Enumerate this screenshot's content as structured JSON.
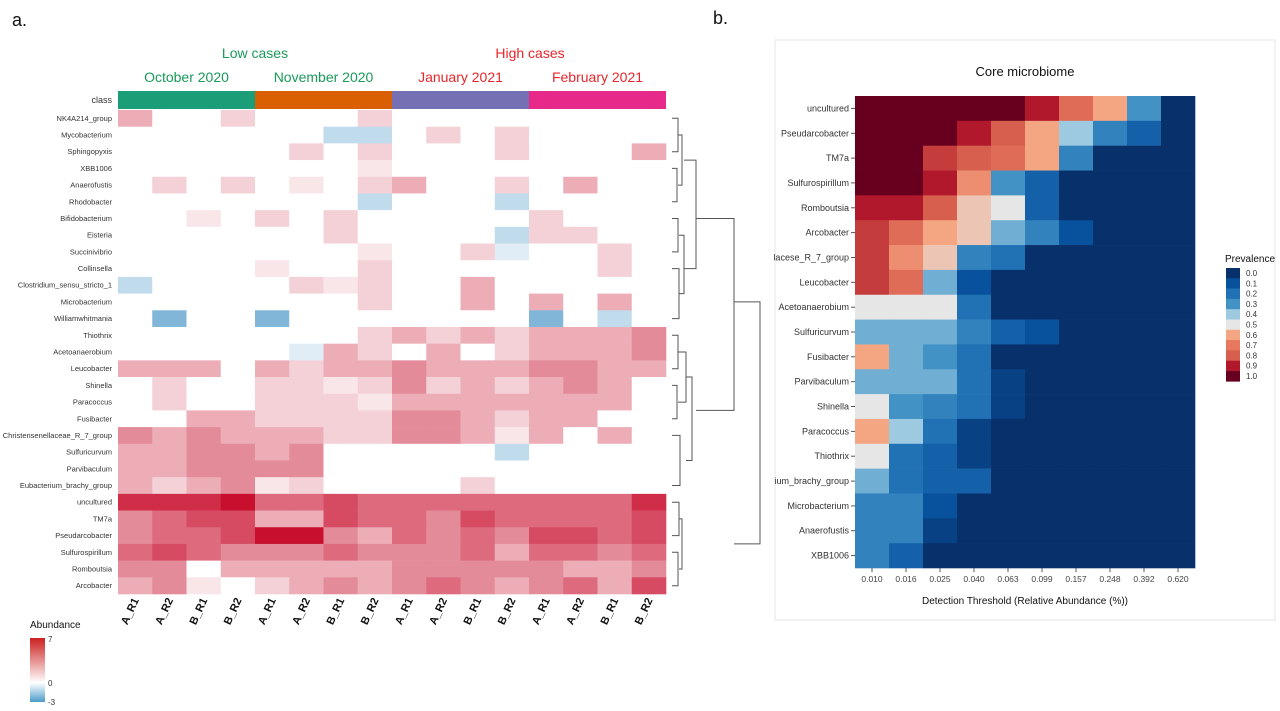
{
  "chart_data": [
    {
      "type": "heatmap",
      "panel": "a.",
      "group_headers": [
        {
          "label": "Low cases",
          "color": "#1a9a5a"
        },
        {
          "label": "High cases",
          "color": "#e8262a"
        }
      ],
      "months": [
        {
          "label": "October 2020",
          "color": "#1a9a5a",
          "bar": "#1b9e77"
        },
        {
          "label": "November 2020",
          "color": "#1a9a5a",
          "bar": "#d95f02"
        },
        {
          "label": "January 2021",
          "color": "#e8262a",
          "bar": "#7570b3"
        },
        {
          "label": "February 2021",
          "color": "#e8262a",
          "bar": "#e7298a"
        }
      ],
      "class_label": "class",
      "columns": [
        "A_R1",
        "A_R2",
        "B_R1",
        "B_R2",
        "A_R1",
        "A_R2",
        "B_R1",
        "B_R2",
        "A_R1",
        "A_R2",
        "B_R1",
        "B_R2",
        "A_R1",
        "A_R2",
        "B_R1",
        "B_R2"
      ],
      "rows": [
        "NK4A214_group",
        "Mycobacterium",
        "Sphingopyxis",
        "XBB1006",
        "Anaerofustis",
        "Rhodobacter",
        "Bifidobacterium",
        "Eisteria",
        "Succinivibrio",
        "Collinsella",
        "Clostridium_sensu_stricto_1",
        "Microbacterium",
        "Williamwhitmania",
        "Thiothrix",
        "Acetoanaerobium",
        "Leucobacter",
        "Shinella",
        "Paracoccus",
        "Fusibacter",
        "Christensenellaceae_R_7_group",
        "Sulfuricurvum",
        "Parvibaculum",
        "Eubacterium_brachy_group",
        "uncultured",
        "TM7a",
        "Pseudarcobacter",
        "Sulfurospirillum",
        "Romboutsia",
        "Arcobacter"
      ],
      "values": [
        [
          2,
          0,
          0,
          1,
          0,
          0,
          0,
          1,
          0,
          0,
          0,
          0,
          0,
          0,
          0,
          0
        ],
        [
          0,
          0,
          0,
          0,
          0,
          0,
          -1,
          -1,
          0,
          1,
          0,
          1,
          0,
          0,
          0,
          0
        ],
        [
          0,
          0,
          0,
          0,
          0,
          1,
          0,
          1,
          0,
          0,
          0,
          1,
          0,
          0,
          0,
          2
        ],
        [
          0,
          0,
          0,
          0,
          0,
          0,
          0,
          0.5,
          0,
          0,
          0,
          0,
          0,
          0,
          0,
          0
        ],
        [
          0,
          1,
          0,
          1,
          0,
          0.5,
          0,
          1,
          2,
          0,
          0,
          1,
          0,
          2,
          0,
          0
        ],
        [
          0,
          0,
          0,
          0,
          0,
          0,
          0,
          -1,
          0,
          0,
          0,
          -1,
          0,
          0,
          0,
          0
        ],
        [
          0,
          0,
          0.5,
          0,
          1,
          0,
          1,
          0,
          0,
          0,
          0,
          0,
          1,
          0,
          0,
          0
        ],
        [
          0,
          0,
          0,
          0,
          0,
          0,
          1,
          0,
          0,
          0,
          0,
          -1,
          1,
          1,
          0,
          0
        ],
        [
          0,
          0,
          0,
          0,
          0,
          0,
          0,
          0.5,
          0,
          0,
          1,
          -0.5,
          0,
          0,
          1,
          0
        ],
        [
          0,
          0,
          0,
          0,
          0.5,
          0,
          0,
          1,
          0,
          0,
          0,
          0,
          0,
          0,
          1,
          0
        ],
        [
          -1,
          0,
          0,
          0,
          0,
          1,
          0.5,
          1,
          0,
          0,
          2,
          0,
          0,
          0,
          0,
          0
        ],
        [
          0,
          0,
          0,
          0,
          0,
          0,
          0,
          1,
          0,
          0,
          2,
          0,
          2,
          0,
          2,
          0
        ],
        [
          0,
          -2,
          0,
          0,
          -2,
          0,
          0,
          0,
          0,
          0,
          0,
          0,
          -2,
          0,
          -1,
          0
        ],
        [
          0,
          0,
          0,
          0,
          0,
          0,
          0,
          1,
          2,
          1,
          2,
          1,
          2,
          2,
          2,
          3
        ],
        [
          0,
          0,
          0,
          0,
          0,
          -0.5,
          2,
          1,
          0,
          2,
          0,
          1,
          2,
          2,
          2,
          3
        ],
        [
          2,
          2,
          2,
          0,
          2,
          1,
          2,
          2,
          3,
          2,
          2,
          2,
          3,
          3,
          2,
          2
        ],
        [
          0,
          1,
          0,
          0,
          1,
          1,
          0.5,
          1,
          3,
          1,
          2,
          1,
          2,
          3,
          2,
          0
        ],
        [
          0,
          1,
          0,
          0,
          1,
          1,
          1,
          0.5,
          2,
          2,
          2,
          2,
          2,
          2,
          2,
          0
        ],
        [
          0,
          0,
          2,
          2,
          1,
          1,
          1,
          1,
          3,
          3,
          2,
          1,
          2,
          2,
          0,
          0
        ],
        [
          3,
          2,
          3,
          2,
          2,
          2,
          1,
          1,
          3,
          3,
          2,
          0.5,
          2,
          0,
          2,
          0
        ],
        [
          2,
          2,
          3,
          3,
          2,
          3,
          0,
          0,
          0,
          0,
          0,
          -1,
          0,
          0,
          0,
          0
        ],
        [
          2,
          2,
          3,
          3,
          3,
          3,
          0,
          0,
          0,
          0,
          0,
          0,
          0,
          0,
          0,
          0
        ],
        [
          2,
          1,
          2,
          3,
          0.5,
          1,
          0,
          0,
          0,
          0,
          1,
          0,
          0,
          0,
          0,
          0
        ],
        [
          6,
          6,
          6,
          7,
          4,
          4,
          5,
          4,
          4,
          4,
          4,
          4,
          4,
          4,
          4,
          6
        ],
        [
          3,
          4,
          5,
          5,
          2,
          2,
          5,
          4,
          4,
          3,
          5,
          4,
          4,
          4,
          4,
          5
        ],
        [
          3,
          4,
          4,
          5,
          7,
          7,
          3,
          2,
          4,
          3,
          4,
          3,
          5,
          5,
          4,
          5
        ],
        [
          4,
          5,
          4,
          3,
          3,
          3,
          4,
          3,
          3,
          3,
          4,
          2,
          4,
          4,
          3,
          4
        ],
        [
          3,
          3,
          0,
          2,
          2,
          2,
          2,
          2,
          3,
          3,
          3,
          3,
          3,
          2,
          2,
          3
        ],
        [
          2,
          3,
          0.5,
          0,
          1,
          2,
          3,
          2,
          3,
          4,
          3,
          2,
          3,
          4,
          2,
          5
        ]
      ],
      "legend": {
        "title": "Abundance",
        "ticks": [
          "7",
          "0",
          "-3"
        ],
        "max": 7,
        "min": -3
      }
    },
    {
      "type": "heatmap",
      "panel": "b.",
      "title": "Core microbiome",
      "xlabel": "Detection Threshold (Relative Abundance (%))",
      "x": [
        "0.010",
        "0.016",
        "0.025",
        "0.040",
        "0.063",
        "0.099",
        "0.157",
        "0.248",
        "0.392",
        "0.620"
      ],
      "y": [
        "uncultured",
        "Pseudarcobacter",
        "TM7a",
        "Sulfurospirillum",
        "Romboutsia",
        "Arcobacter",
        "lacese_R_7_group",
        "Leucobacter",
        "Acetoanaerobium",
        "Sulfuricurvum",
        "Fusibacter",
        "Parvibaculum",
        "Shinella",
        "Paracoccus",
        "Thiothrix",
        "ium_brachy_group",
        "Microbacterium",
        "Anaerofustis",
        "XBB1006"
      ],
      "values": [
        [
          1.0,
          1.0,
          1.0,
          1.0,
          1.0,
          0.9,
          0.75,
          0.6,
          0.3,
          0.0
        ],
        [
          1.0,
          1.0,
          1.0,
          0.9,
          0.8,
          0.6,
          0.4,
          0.25,
          0.15,
          0.0
        ],
        [
          1.0,
          1.0,
          0.85,
          0.8,
          0.75,
          0.6,
          0.25,
          0.0,
          0.0,
          0.0
        ],
        [
          1.0,
          1.0,
          0.9,
          0.65,
          0.3,
          0.15,
          0.0,
          0.0,
          0.0,
          0.0
        ],
        [
          0.9,
          0.9,
          0.8,
          0.55,
          0.5,
          0.15,
          0.0,
          0.0,
          0.0,
          0.0
        ],
        [
          0.85,
          0.75,
          0.6,
          0.55,
          0.35,
          0.25,
          0.1,
          0.0,
          0.0,
          0.0
        ],
        [
          0.85,
          0.65,
          0.55,
          0.25,
          0.2,
          0.0,
          0.0,
          0.0,
          0.0,
          0.0
        ],
        [
          0.85,
          0.75,
          0.35,
          0.1,
          0.0,
          0.0,
          0.0,
          0.0,
          0.0,
          0.0
        ],
        [
          0.5,
          0.5,
          0.5,
          0.2,
          0.0,
          0.0,
          0.0,
          0.0,
          0.0,
          0.0
        ],
        [
          0.35,
          0.35,
          0.35,
          0.25,
          0.15,
          0.1,
          0.0,
          0.0,
          0.0,
          0.0
        ],
        [
          0.6,
          0.35,
          0.3,
          0.2,
          0.0,
          0.0,
          0.0,
          0.0,
          0.0,
          0.0
        ],
        [
          0.35,
          0.35,
          0.35,
          0.2,
          0.05,
          0.0,
          0.0,
          0.0,
          0.0,
          0.0
        ],
        [
          0.5,
          0.3,
          0.25,
          0.2,
          0.05,
          0.0,
          0.0,
          0.0,
          0.0,
          0.0
        ],
        [
          0.6,
          0.4,
          0.2,
          0.05,
          0.0,
          0.0,
          0.0,
          0.0,
          0.0,
          0.0
        ],
        [
          0.5,
          0.2,
          0.15,
          0.05,
          0.0,
          0.0,
          0.0,
          0.0,
          0.0,
          0.0
        ],
        [
          0.35,
          0.2,
          0.15,
          0.15,
          0.0,
          0.0,
          0.0,
          0.0,
          0.0,
          0.0
        ],
        [
          0.25,
          0.25,
          0.1,
          0.0,
          0.0,
          0.0,
          0.0,
          0.0,
          0.0,
          0.0
        ],
        [
          0.25,
          0.25,
          0.05,
          0.0,
          0.0,
          0.0,
          0.0,
          0.0,
          0.0,
          0.0
        ],
        [
          0.25,
          0.15,
          0.0,
          0.0,
          0.0,
          0.0,
          0.0,
          0.0,
          0.0,
          0.0
        ]
      ],
      "legend": {
        "title": "Prevalence",
        "ticks": [
          "0.0",
          "0.1",
          "0.2",
          "0.3",
          "0.4",
          "0.5",
          "0.6",
          "0.7",
          "0.8",
          "0.9",
          "1.0"
        ]
      }
    }
  ]
}
